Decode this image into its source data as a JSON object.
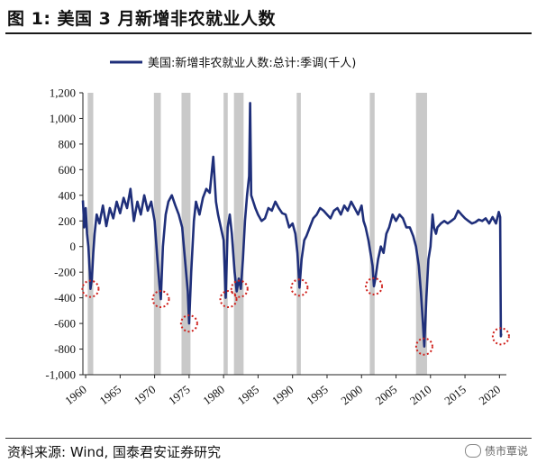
{
  "title": "图 1:  美国 3 月新增非农就业人数",
  "source": "资料来源:  Wind, 国泰君安证券研究",
  "watermark": "债市覃说",
  "colors": {
    "line": "#1f2f7a",
    "recession": "#c9c9c9",
    "marker": "#d0201b"
  },
  "chart_data": {
    "type": "line",
    "legend": "美国:新增非农就业人数:总计:季调(千人)",
    "legend_position": "top",
    "xlabel": "",
    "ylabel": "",
    "xlim": [
      1959.6,
      2021.0
    ],
    "ylim": [
      -1000,
      1200
    ],
    "yticks": [
      -1000,
      -800,
      -600,
      -400,
      -200,
      0,
      200,
      400,
      600,
      800,
      1000,
      1200
    ],
    "ytick_labels": [
      "-1,000",
      "-800",
      "-600",
      "-400",
      "-200",
      "0",
      "200",
      "400",
      "600",
      "800",
      "1,000",
      "1,200"
    ],
    "xticks": [
      "1960",
      "1965",
      "1970",
      "1975",
      "1980",
      "1985",
      "1990",
      "1995",
      "2000",
      "2005",
      "2010",
      "2015",
      "2020"
    ],
    "recessions": [
      [
        1960.3,
        1961.1
      ],
      [
        1969.9,
        1970.9
      ],
      [
        1973.9,
        1975.2
      ],
      [
        1980.0,
        1980.6
      ],
      [
        1981.5,
        1982.9
      ],
      [
        1990.6,
        1991.2
      ],
      [
        2001.2,
        2001.9
      ],
      [
        2007.9,
        2009.5
      ]
    ],
    "troughs": [
      {
        "x": 1960.7,
        "y": -330
      },
      {
        "x": 1970.9,
        "y": -410
      },
      {
        "x": 1975.0,
        "y": -600
      },
      {
        "x": 1980.7,
        "y": -410
      },
      {
        "x": 1982.3,
        "y": -330
      },
      {
        "x": 1991.0,
        "y": -320
      },
      {
        "x": 2001.8,
        "y": -310
      },
      {
        "x": 2009.1,
        "y": -780
      },
      {
        "x": 2020.2,
        "y": -700
      }
    ],
    "series": [
      {
        "name": "美国:新增非农就业人数:总计:季调(千人)",
        "x": [
          1959.6,
          1959.8,
          1960.0,
          1960.2,
          1960.4,
          1960.6,
          1960.7,
          1960.9,
          1961.1,
          1961.3,
          1961.6,
          1962.0,
          1962.5,
          1963.0,
          1963.5,
          1964.0,
          1964.5,
          1965.0,
          1965.5,
          1966.0,
          1966.5,
          1967.0,
          1967.5,
          1968.0,
          1968.5,
          1969.0,
          1969.5,
          1970.0,
          1970.4,
          1970.7,
          1970.9,
          1971.2,
          1971.6,
          1972.0,
          1972.5,
          1973.0,
          1973.5,
          1974.0,
          1974.4,
          1974.8,
          1975.0,
          1975.3,
          1975.7,
          1976.0,
          1976.5,
          1977.0,
          1977.5,
          1978.0,
          1978.5,
          1978.9,
          1979.2,
          1979.6,
          1980.0,
          1980.3,
          1980.6,
          1980.9,
          1981.2,
          1981.6,
          1981.9,
          1982.2,
          1982.5,
          1982.8,
          1983.1,
          1983.4,
          1983.7,
          1983.85,
          1984.0,
          1984.3,
          1984.6,
          1985.0,
          1985.5,
          1986.0,
          1986.5,
          1987.0,
          1987.5,
          1988.0,
          1988.5,
          1989.0,
          1989.5,
          1990.0,
          1990.4,
          1990.7,
          1991.0,
          1991.3,
          1991.7,
          1992.0,
          1992.5,
          1993.0,
          1993.5,
          1994.0,
          1994.5,
          1995.0,
          1995.5,
          1996.0,
          1996.5,
          1997.0,
          1997.5,
          1998.0,
          1998.5,
          1999.0,
          1999.5,
          2000.0,
          2000.3,
          2000.6,
          2001.0,
          2001.3,
          2001.6,
          2001.8,
          2002.0,
          2002.4,
          2002.8,
          2003.2,
          2003.6,
          2004.0,
          2004.5,
          2005.0,
          2005.5,
          2006.0,
          2006.5,
          2007.0,
          2007.5,
          2007.9,
          2008.3,
          2008.6,
          2008.9,
          2009.1,
          2009.4,
          2009.7,
          2010.0,
          2010.3,
          2010.5,
          2010.8,
          2011.0,
          2011.5,
          2012.0,
          2012.5,
          2013.0,
          2013.5,
          2014.0,
          2014.5,
          2015.0,
          2015.5,
          2016.0,
          2016.5,
          2017.0,
          2017.5,
          2018.0,
          2018.5,
          2019.0,
          2019.5,
          2019.9,
          2020.1,
          2020.2,
          2020.25
        ],
        "values": [
          360,
          150,
          300,
          100,
          0,
          -200,
          -330,
          -250,
          -50,
          100,
          250,
          180,
          320,
          160,
          300,
          220,
          350,
          260,
          380,
          300,
          450,
          200,
          350,
          250,
          400,
          280,
          350,
          200,
          -100,
          -300,
          -410,
          0,
          250,
          350,
          400,
          320,
          250,
          150,
          -100,
          -350,
          -600,
          -200,
          200,
          350,
          250,
          380,
          450,
          420,
          700,
          350,
          250,
          150,
          50,
          -400,
          150,
          250,
          100,
          -200,
          -350,
          -250,
          -330,
          -100,
          200,
          400,
          550,
          1120,
          400,
          350,
          300,
          250,
          200,
          220,
          300,
          280,
          350,
          300,
          260,
          250,
          150,
          180,
          100,
          -50,
          -320,
          -100,
          50,
          80,
          150,
          220,
          250,
          300,
          280,
          250,
          220,
          280,
          300,
          250,
          320,
          280,
          350,
          300,
          250,
          320,
          200,
          150,
          50,
          -50,
          -150,
          -310,
          -250,
          -100,
          0,
          -50,
          100,
          150,
          250,
          200,
          250,
          220,
          150,
          150,
          80,
          0,
          -150,
          -350,
          -600,
          -780,
          -400,
          -100,
          0,
          250,
          150,
          100,
          150,
          180,
          200,
          180,
          200,
          220,
          280,
          250,
          220,
          200,
          180,
          190,
          210,
          200,
          220,
          180,
          230,
          180,
          270,
          230,
          -700,
          -680
        ]
      }
    ]
  }
}
